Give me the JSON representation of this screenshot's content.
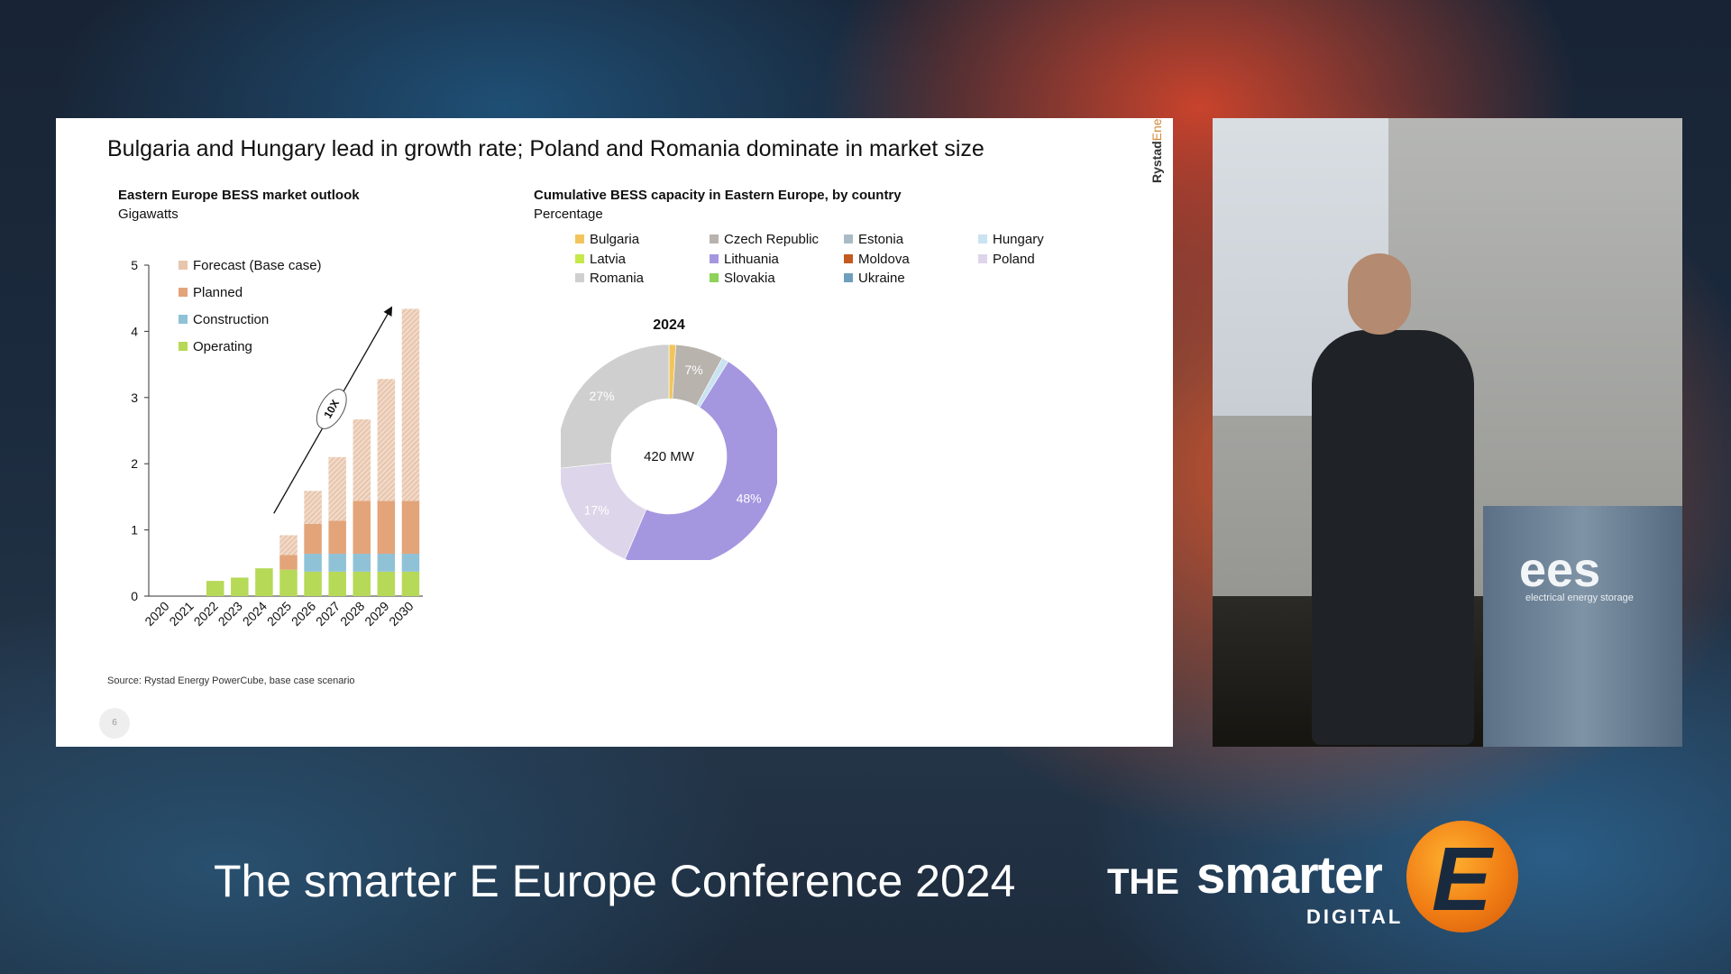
{
  "slide": {
    "title": "Bulgaria and Hungary lead in growth rate; Poland and Romania dominate in market size",
    "brand_part1": "Rystad",
    "brand_part2": "Energy",
    "page_number": "6",
    "source": "Source: Rystad Energy PowerCube, base case scenario"
  },
  "chart_data": [
    {
      "type": "bar",
      "stacked": true,
      "title": "Eastern Europe BESS market outlook",
      "subtitle": "Gigawatts",
      "categories": [
        "2020",
        "2021",
        "2022",
        "2023",
        "2024",
        "2025",
        "2026",
        "2027",
        "2028",
        "2029",
        "2030"
      ],
      "ylim": [
        0,
        5
      ],
      "yticks": [
        0,
        1,
        2,
        3,
        4,
        5
      ],
      "series": [
        {
          "name": "Operating",
          "color": "#b6d957",
          "values": [
            0,
            0,
            0.23,
            0.28,
            0.42,
            0.4,
            0.37,
            0.37,
            0.37,
            0.37,
            0.37
          ]
        },
        {
          "name": "Construction",
          "color": "#8fc2d6",
          "values": [
            0,
            0,
            0,
            0,
            0,
            0,
            0.27,
            0.27,
            0.27,
            0.27,
            0.27
          ]
        },
        {
          "name": "Planned",
          "color": "#e3a47a",
          "values": [
            0,
            0,
            0,
            0,
            0,
            0.22,
            0.45,
            0.5,
            0.8,
            0.8,
            0.8
          ]
        },
        {
          "name": "Forecast (Base case)",
          "color": "#e8c5ad",
          "values": [
            0,
            0,
            0,
            0,
            0,
            0.3,
            0.5,
            0.96,
            1.23,
            1.84,
            2.9
          ]
        }
      ],
      "annotation": "10X",
      "legend_placement": "top-left"
    },
    {
      "type": "pie",
      "donut": true,
      "title": "Cumulative BESS capacity in Eastern Europe, by country",
      "subtitle": "Percentage",
      "chart_title": "2024",
      "center_label": "420 MW",
      "legend": [
        {
          "name": "Bulgaria",
          "color": "#f2c55c"
        },
        {
          "name": "Czech Republic",
          "color": "#b8b3ad"
        },
        {
          "name": "Estonia",
          "color": "#a9bcc6"
        },
        {
          "name": "Hungary",
          "color": "#c9e3f2"
        },
        {
          "name": "Latvia",
          "color": "#c6e84a"
        },
        {
          "name": "Lithuania",
          "color": "#a596e0"
        },
        {
          "name": "Moldova",
          "color": "#c35a22"
        },
        {
          "name": "Poland",
          "color": "#ddd5ea"
        },
        {
          "name": "Romania",
          "color": "#cfcfcf"
        },
        {
          "name": "Slovakia",
          "color": "#8ed25a"
        },
        {
          "name": "Ukraine",
          "color": "#6f9fbd"
        }
      ],
      "slices": [
        {
          "name": "Bulgaria",
          "value": 1,
          "color": "#f2c55c",
          "label": ""
        },
        {
          "name": "Czech Republic",
          "value": 7,
          "color": "#b8b3ad",
          "label": "7%"
        },
        {
          "name": "Hungary",
          "value": 1,
          "color": "#c9e3f2",
          "label": ""
        },
        {
          "name": "Lithuania",
          "value": 48,
          "color": "#a596e0",
          "label": "48%"
        },
        {
          "name": "Poland",
          "value": 17,
          "color": "#ddd5ea",
          "label": "17%"
        },
        {
          "name": "Romania",
          "value": 27,
          "color": "#cfcfcf",
          "label": "27%"
        }
      ]
    }
  ],
  "footer": {
    "conference_title": "The smarter E Europe Conference 2024",
    "logo_the": "THE",
    "logo_smarter": "smarter",
    "logo_digital": "DIGITAL",
    "logo_e": "E"
  },
  "video": {
    "podium_logo": "ees",
    "podium_tagline": "electrical energy storage"
  }
}
